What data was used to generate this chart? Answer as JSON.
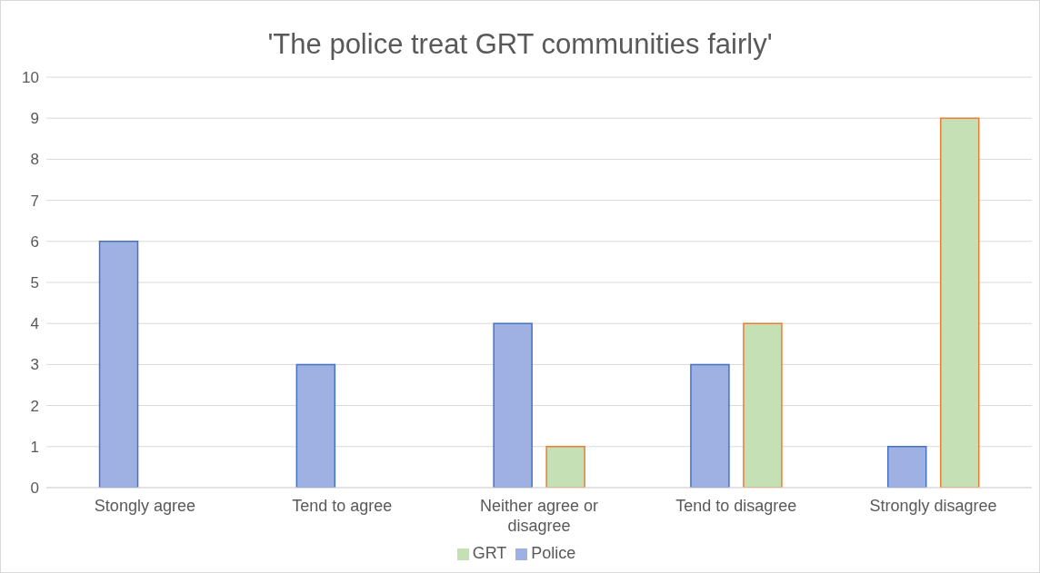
{
  "chart_data": {
    "type": "bar",
    "title": "'The police treat GRT communities fairly'",
    "categories": [
      "Stongly agree",
      "Tend to agree",
      "Neither agree or disagree",
      "Tend to disagree",
      "Strongly disagree"
    ],
    "series": [
      {
        "name": "Police",
        "color": "#9fb1e2",
        "values": [
          6,
          3,
          4,
          3,
          1
        ]
      },
      {
        "name": "GRT",
        "color": "#c5e0b4",
        "values": [
          0,
          0,
          1,
          4,
          9
        ]
      }
    ],
    "ylim": [
      0,
      10
    ],
    "yticks": [
      0,
      1,
      2,
      3,
      4,
      5,
      6,
      7,
      8,
      9,
      10
    ],
    "grid": "y",
    "legend": "bottom"
  }
}
